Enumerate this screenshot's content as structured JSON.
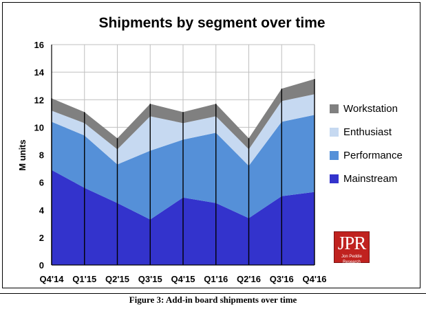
{
  "caption": "Figure 3: Add-in board shipments over time",
  "logo": {
    "text": "JPR",
    "subtext": "Jon Peddie Research"
  },
  "chart_data": {
    "type": "area",
    "stacked": true,
    "title": "Shipments by segment over time",
    "xlabel": "",
    "ylabel": "M units",
    "ylim": [
      0,
      16
    ],
    "yticks": [
      0,
      2,
      4,
      6,
      8,
      10,
      12,
      14,
      16
    ],
    "grid": true,
    "legend_position": "right",
    "categories": [
      "Q4'14",
      "Q1'15",
      "Q2'15",
      "Q3'15",
      "Q4'15",
      "Q1'16",
      "Q2'16",
      "Q3'16",
      "Q4'16"
    ],
    "series": [
      {
        "name": "Mainstream",
        "color": "#3333cc",
        "values": [
          6.9,
          5.6,
          4.5,
          3.3,
          4.9,
          4.5,
          3.4,
          5.0,
          5.3
        ]
      },
      {
        "name": "Performance",
        "color": "#5590d8",
        "values": [
          3.5,
          3.8,
          2.8,
          5.0,
          4.2,
          5.1,
          3.8,
          5.4,
          5.6
        ]
      },
      {
        "name": "Enthusiast",
        "color": "#c6d9f1",
        "values": [
          0.8,
          0.9,
          1.1,
          2.5,
          1.2,
          1.2,
          1.2,
          1.5,
          1.5
        ]
      },
      {
        "name": "Workstation",
        "color": "#808080",
        "values": [
          0.9,
          0.8,
          0.8,
          0.9,
          0.8,
          0.9,
          0.8,
          0.9,
          1.1
        ]
      }
    ],
    "legend_order": [
      "Workstation",
      "Enthusiast",
      "Performance",
      "Mainstream"
    ]
  }
}
